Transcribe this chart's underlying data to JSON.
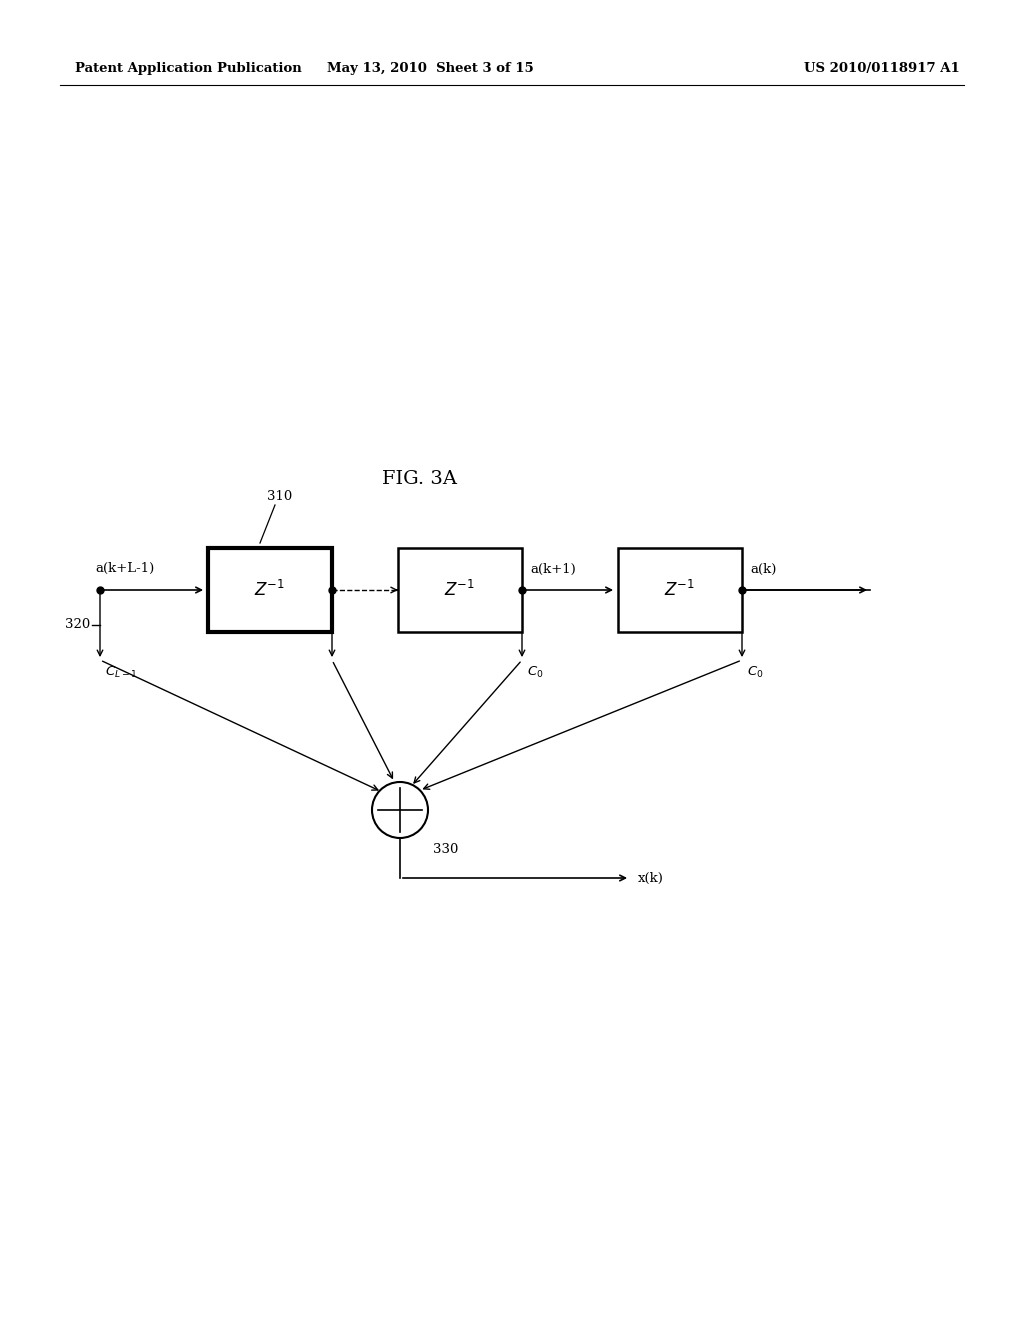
{
  "title": "FIG. 3A",
  "header_left": "Patent Application Publication",
  "header_center": "May 13, 2010  Sheet 3 of 15",
  "header_right": "US 2010/0118917 A1",
  "background": "#ffffff",
  "input_label": "a(k+L-1)",
  "label_310": "310",
  "label_320": "320",
  "label_330": "330",
  "label_CL1": "C_{L-1}",
  "label_C0_mid": "C_0",
  "label_C0_right": "C_0",
  "label_ak1": "a(k+1)",
  "label_ak": "a(k)",
  "label_xk": "x(k)"
}
